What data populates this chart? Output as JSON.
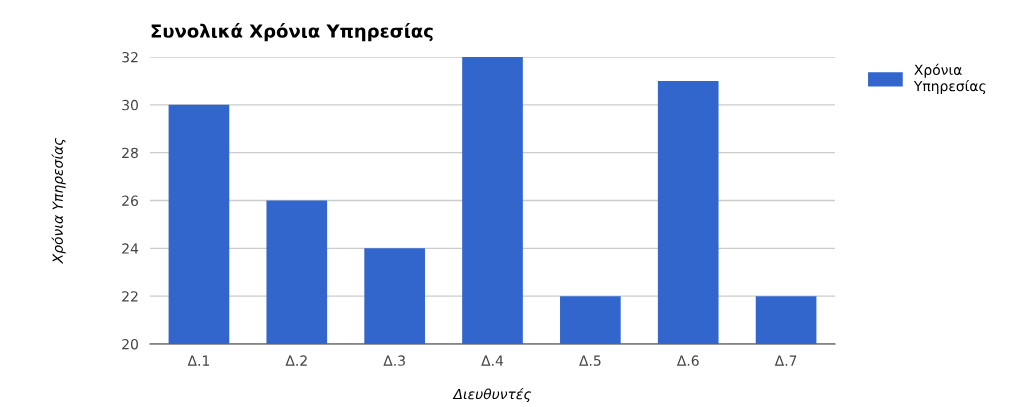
{
  "chart_data": {
    "type": "bar",
    "title": "Συνολικά Χρόνια Υπηρεσίας",
    "xlabel": "Διευθυντές",
    "ylabel": "Χρόνια Υπηρεσίας",
    "categories": [
      "Δ.1",
      "Δ.2",
      "Δ.3",
      "Δ.4",
      "Δ.5",
      "Δ.6",
      "Δ.7"
    ],
    "series": [
      {
        "name": "Χρόνια Υπηρεσίας",
        "color": "#3366cc",
        "values": [
          30,
          26,
          24,
          32,
          22,
          31,
          22
        ]
      }
    ],
    "ylim": [
      20,
      32
    ],
    "yticks": [
      20,
      22,
      24,
      26,
      28,
      30,
      32
    ],
    "grid": "y",
    "legend": "top right"
  }
}
